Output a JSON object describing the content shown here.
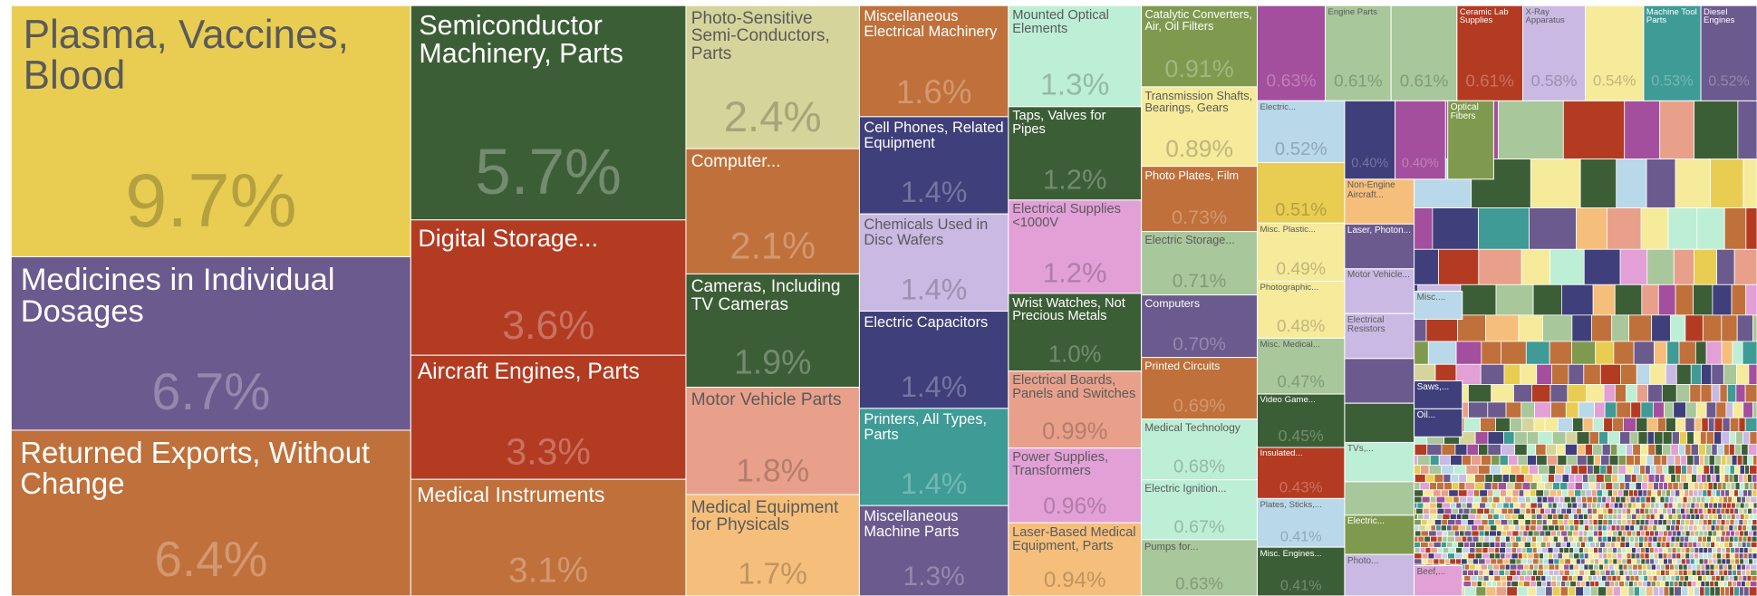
{
  "chart_data": {
    "type": "treemap",
    "categories": [
      "Plasma, Vaccines, Blood",
      "Medicines in Individual Dosages",
      "Returned Exports, Without Change",
      "Semiconductor Machinery, Parts",
      "Digital Storage...",
      "Aircraft Engines, Parts",
      "Medical Instruments",
      "Photo-Sensitive Semi-Conductors, Parts",
      "Computer...",
      "Cameras, Including TV Cameras",
      "Motor Vehicle Parts",
      "Medical Equipment for Physicals",
      "Miscellaneous Electrical Machinery",
      "Cell Phones, Related Equipment",
      "Chemicals Used in Disc Wafers",
      "Electric Capacitors",
      "Printers, All Types, Parts",
      "Miscellaneous Machine Parts",
      "Mounted Optical Elements",
      "Taps, Valves for Pipes",
      "Electrical Supplies <1000V",
      "Wrist Watches, Not Precious Metals",
      "Electrical Boards, Panels and Switches",
      "Power Supplies, Transformers",
      "Laser-Based Medical Equipment, Parts",
      "Catalytic Converters, Air, Oil Filters",
      "Transmission Shafts, Bearings, Gears",
      "Photo Plates, Film",
      "Electric Storage...",
      "Computers",
      "Printed Circuits",
      "Medical Technology",
      "Electric Ignition...",
      "Pumps for...",
      null,
      "Engine Parts",
      null,
      "Ceramic Lab Supplies",
      "X-Ray Apparatus",
      null,
      "Machine Tool Parts",
      "Diesel Engines",
      "Electric...",
      null,
      "Misc. Plastic...",
      "Photographic...",
      "Misc. Medical...",
      "Video Game...",
      "Insulated...",
      "Plates, Sticks,...",
      "Misc. Engines...",
      null,
      null
    ],
    "values": [
      9.7,
      6.7,
      6.4,
      5.7,
      3.6,
      3.3,
      3.1,
      2.4,
      2.1,
      1.9,
      1.8,
      1.7,
      1.6,
      1.4,
      1.4,
      1.4,
      1.4,
      1.3,
      1.3,
      1.2,
      1.2,
      1.0,
      0.99,
      0.96,
      0.94,
      0.91,
      0.89,
      0.73,
      0.71,
      0.7,
      0.69,
      0.68,
      0.67,
      0.63,
      0.63,
      0.61,
      0.61,
      0.61,
      0.58,
      0.54,
      0.53,
      0.52,
      0.52,
      0.51,
      0.49,
      0.48,
      0.47,
      0.45,
      0.43,
      0.41,
      0.41,
      0.4,
      0.4
    ],
    "value_labels": [
      "9.7%",
      "6.7%",
      "6.4%",
      "5.7%",
      "3.6%",
      "3.3%",
      "3.1%",
      "2.4%",
      "2.1%",
      "1.9%",
      "1.8%",
      "1.7%",
      "1.6%",
      "1.4%",
      "1.4%",
      "1.4%",
      "1.4%",
      "1.3%",
      "1.3%",
      "1.2%",
      "1.2%",
      "1.0%",
      "0.99%",
      "0.96%",
      "0.94%",
      "0.91%",
      "0.89%",
      "0.73%",
      "0.71%",
      "0.70%",
      "0.69%",
      "0.68%",
      "0.67%",
      "0.63%",
      "0.63%",
      "0.61%",
      "0.61%",
      "0.61%",
      "0.58%",
      "0.54%",
      "0.53%",
      "0.52%",
      "0.52%",
      "0.51%",
      "0.49%",
      "0.48%",
      "0.47%",
      "0.45%",
      "0.43%",
      "0.41%",
      "0.41%",
      "0.40%",
      "0.40%"
    ],
    "colors": [
      "#e8cd52",
      "#6b5a8e",
      "#c0703a",
      "#3c5e36",
      "#b33b22",
      "#b33b22",
      "#c0703a",
      "#d5d49b",
      "#c0703a",
      "#3c5e36",
      "#e8a08a",
      "#f6be7b",
      "#c0703a",
      "#3f3f7b",
      "#c9b9e3",
      "#3f3f7b",
      "#3e9b96",
      "#6b5a8e",
      "#bdeed6",
      "#3c5e36",
      "#e2a0d7",
      "#3c5e36",
      "#e8a08a",
      "#e2a0d7",
      "#f6be7b",
      "#7f9a4f",
      "#f6ea9b",
      "#c0703a",
      "#a8c79a",
      "#6b5a8e",
      "#c0703a",
      "#bdeed6",
      "#bdeed6",
      "#a8c79a",
      "#a34f9d",
      "#a8c79a",
      "#a8c79a",
      "#b33b22",
      "#c9b9e3",
      "#f6ea9b",
      "#3e9b96",
      "#6b5a8e",
      "#b9d8e9",
      "#e8cd52",
      "#f6ea9b",
      "#f6ea9b",
      "#a8c79a",
      "#3c5e36",
      "#b33b22",
      "#b9d8e9",
      "#3c5e36",
      "#3f3f7b",
      "#a34f9d"
    ],
    "minor": {
      "labels": [
        "Optical Fibers",
        "Non-Engine Aircraft...",
        "Laser, Photon...",
        "Motor Vehicle...",
        "Electrical Resistors",
        "TVs,...",
        "Electric...",
        "Photo...",
        "Misc....",
        "Saws,...",
        "Oil...",
        "Beef,..."
      ],
      "colors": [
        "#7f9a4f",
        "#f6be7b",
        "#6b5a8e",
        "#c9b9e3",
        "#c9b9e3",
        "#bdeed6",
        "#7f9a4f",
        "#c9b9e3",
        "#b9d8e9",
        "#3f3f7b",
        "#3f3f7b",
        "#e2a0d7"
      ]
    }
  }
}
